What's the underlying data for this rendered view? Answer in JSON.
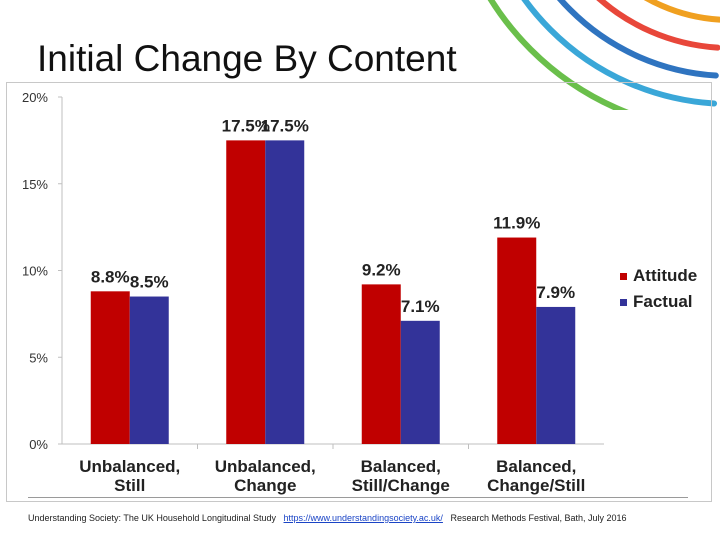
{
  "slide": {
    "title": "Initial Change By Content",
    "footer_left": "Understanding Society: The UK Household Longitudinal Study",
    "footer_link": "https://www.understandingsociety.ac.uk/",
    "footer_right": "Research Methods Festival, Bath, July 2016"
  },
  "decor": {
    "arc_colors": [
      "#f0a020",
      "#e8473a",
      "#2f74c0",
      "#3aa7d8",
      "#6abf4b"
    ]
  },
  "chart_data": {
    "type": "bar",
    "categories": [
      [
        "Unbalanced,",
        "Still"
      ],
      [
        "Unbalanced,",
        "Change"
      ],
      [
        "Balanced,",
        "Still/Change"
      ],
      [
        "Balanced,",
        "Change/Still"
      ]
    ],
    "series": [
      {
        "name": "Attitude",
        "color": "#c00000",
        "values": [
          8.8,
          17.5,
          9.2,
          11.9
        ],
        "labels": [
          "8.8%",
          "17.5%",
          "9.2%",
          "11.9%"
        ]
      },
      {
        "name": "Factual",
        "color": "#333399",
        "values": [
          8.5,
          17.5,
          7.1,
          7.9
        ],
        "labels": [
          "8.5%",
          "17.5%",
          "7.1%",
          "7.9%"
        ]
      }
    ],
    "ylim": [
      0,
      20
    ],
    "yticks": [
      0,
      5,
      10,
      15,
      20
    ],
    "ytick_labels": [
      "0%",
      "5%",
      "10%",
      "15%",
      "20%"
    ],
    "legend_position": "right",
    "grid": false
  }
}
